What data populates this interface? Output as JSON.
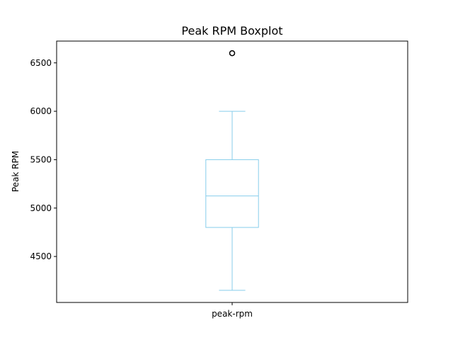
{
  "chart_data": {
    "type": "boxplot",
    "title": "Peak RPM Boxplot",
    "xlabel": "",
    "ylabel": "Peak RPM",
    "categories": [
      "peak-rpm"
    ],
    "boxes": [
      {
        "name": "peak-rpm",
        "whisker_low": 4150,
        "q1": 4800,
        "median": 5125,
        "q3": 5500,
        "whisker_high": 6000,
        "outliers": [
          6600
        ]
      }
    ],
    "yticks": [
      4500,
      5000,
      5500,
      6000,
      6500
    ],
    "ylim": [
      4025,
      6725
    ],
    "grid": false,
    "box_color": "#87ceeb"
  }
}
